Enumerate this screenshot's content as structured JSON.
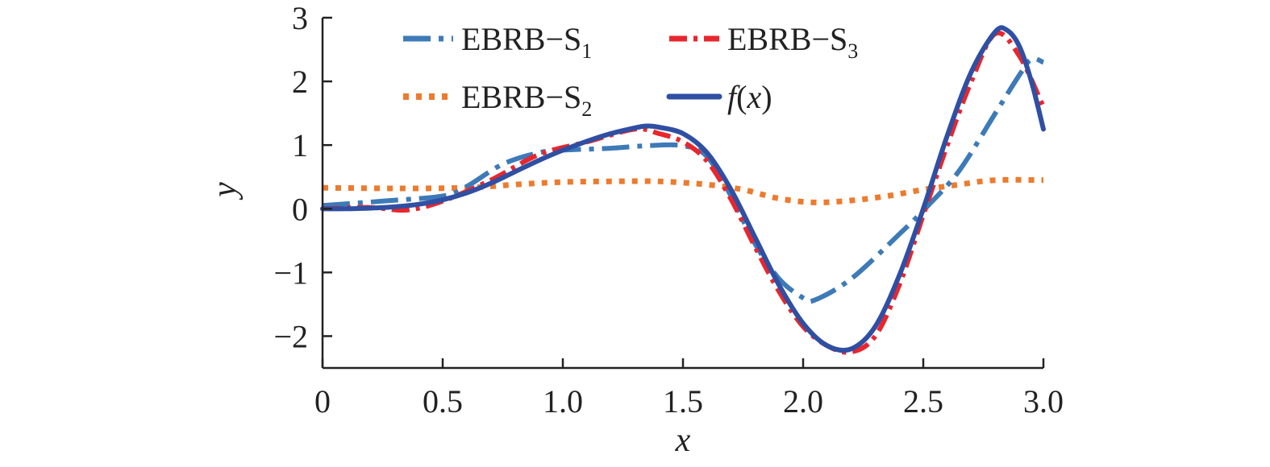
{
  "chart_data": {
    "type": "line",
    "title": "",
    "xlabel": "x",
    "ylabel": "y",
    "xlim": [
      0,
      3.0
    ],
    "ylim": [
      -2.5,
      3
    ],
    "x_ticks": [
      0,
      0.5,
      1.0,
      1.5,
      2.0,
      2.5,
      3.0
    ],
    "x_tick_labels": [
      "0",
      "0.5",
      "1.0",
      "1.5",
      "2.0",
      "2.5",
      "3.0"
    ],
    "y_ticks": [
      -2,
      -1,
      0,
      1,
      2,
      3
    ],
    "y_tick_labels": [
      "−2",
      "−1",
      "0",
      "1",
      "2",
      "3"
    ],
    "grid": false,
    "legend_position": "top",
    "series": [
      {
        "name": "EBRB−S1",
        "label_main": "EBRB−S",
        "label_sub": "1",
        "color": "#3d7ab8",
        "style": "dashdot",
        "x": [
          0,
          0.25,
          0.5,
          0.6,
          0.75,
          0.9,
          1.0,
          1.2,
          1.35,
          1.5,
          1.6,
          1.7,
          1.8,
          1.9,
          2.0,
          2.05,
          2.2,
          2.4,
          2.52,
          2.65,
          2.8,
          2.9,
          2.95,
          3.0
        ],
        "y": [
          0.05,
          0.12,
          0.2,
          0.35,
          0.7,
          0.88,
          0.92,
          0.95,
          0.99,
          0.99,
          0.82,
          0.2,
          -0.55,
          -1.1,
          -1.4,
          -1.43,
          -1.1,
          -0.4,
          0.05,
          0.6,
          1.5,
          2.1,
          2.35,
          2.3
        ]
      },
      {
        "name": "EBRB−S2",
        "label_main": "EBRB−S",
        "label_sub": "2",
        "color": "#ec7b2e",
        "style": "dotted",
        "x": [
          0,
          0.3,
          0.6,
          0.8,
          1.0,
          1.2,
          1.4,
          1.6,
          1.75,
          1.9,
          2.05,
          2.2,
          2.35,
          2.5,
          2.65,
          2.8,
          3.0
        ],
        "y": [
          0.33,
          0.32,
          0.33,
          0.38,
          0.42,
          0.43,
          0.43,
          0.38,
          0.3,
          0.16,
          0.1,
          0.13,
          0.2,
          0.3,
          0.38,
          0.45,
          0.45
        ]
      },
      {
        "name": "EBRB−S3",
        "label_main": "EBRB−S",
        "label_sub": "3",
        "color": "#e8262d",
        "style": "dashed",
        "x": [
          0,
          0.2,
          0.35,
          0.5,
          0.7,
          0.9,
          1.1,
          1.3,
          1.4,
          1.5,
          1.6,
          1.7,
          1.8,
          1.9,
          2.0,
          2.1,
          2.2,
          2.3,
          2.4,
          2.5,
          2.6,
          2.7,
          2.8,
          2.9,
          3.0
        ],
        "y": [
          0.0,
          0.02,
          -0.02,
          0.12,
          0.45,
          0.85,
          1.05,
          1.25,
          1.18,
          1.05,
          0.75,
          0.15,
          -0.6,
          -1.3,
          -1.85,
          -2.15,
          -2.25,
          -2.0,
          -1.2,
          -0.1,
          1.0,
          2.0,
          2.75,
          2.4,
          1.6
        ]
      },
      {
        "name": "f(x)",
        "label_main": "f(x)",
        "label_sub": "",
        "color": "#2f4fa3",
        "style": "solid",
        "x": [
          0,
          0.1,
          0.2,
          0.3,
          0.4,
          0.5,
          0.6,
          0.7,
          0.8,
          0.9,
          1.0,
          1.1,
          1.2,
          1.3,
          1.35,
          1.4,
          1.5,
          1.6,
          1.7,
          1.8,
          1.9,
          2.0,
          2.1,
          2.2,
          2.3,
          2.4,
          2.5,
          2.6,
          2.7,
          2.8,
          2.85,
          2.9,
          2.95,
          3.0
        ],
        "y": [
          0.0,
          0.0,
          0.01,
          0.03,
          0.07,
          0.14,
          0.25,
          0.4,
          0.58,
          0.76,
          0.92,
          1.06,
          1.18,
          1.27,
          1.3,
          1.28,
          1.18,
          0.88,
          0.3,
          -0.45,
          -1.2,
          -1.8,
          -2.15,
          -2.2,
          -1.85,
          -1.05,
          0.0,
          1.15,
          2.15,
          2.78,
          2.8,
          2.55,
          2.0,
          1.25
        ]
      }
    ]
  }
}
